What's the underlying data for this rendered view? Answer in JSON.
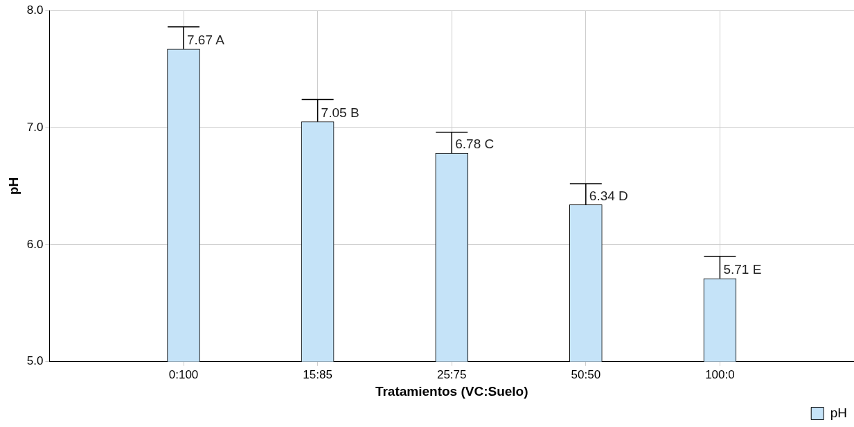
{
  "chart_data": {
    "type": "bar",
    "xlabel": "Tratamientos (VC:Suelo)",
    "ylabel": "pH",
    "categories": [
      "0:100",
      "15:85",
      "25:75",
      "50:50",
      "100:0"
    ],
    "series": [
      {
        "name": "pH",
        "color": "#c5e3f8",
        "values": [
          7.67,
          7.05,
          6.78,
          6.34,
          5.71
        ],
        "errors": [
          [
            7.67,
            7.86
          ],
          [
            7.05,
            7.24
          ],
          [
            6.78,
            6.96
          ],
          [
            6.34,
            6.52
          ],
          [
            5.71,
            5.9
          ]
        ],
        "value_labels": [
          "7.67 A",
          "7.05 B",
          "6.78 C",
          "6.34 D",
          "5.71 E"
        ]
      }
    ],
    "ylim": [
      5,
      8
    ],
    "yticks": [
      {
        "value": 5,
        "label": "5.0"
      },
      {
        "value": 6,
        "label": "6.0"
      },
      {
        "value": 7,
        "label": "7.0"
      },
      {
        "value": 8,
        "label": "8.0"
      }
    ],
    "grid": true,
    "legend": "bottom right"
  }
}
